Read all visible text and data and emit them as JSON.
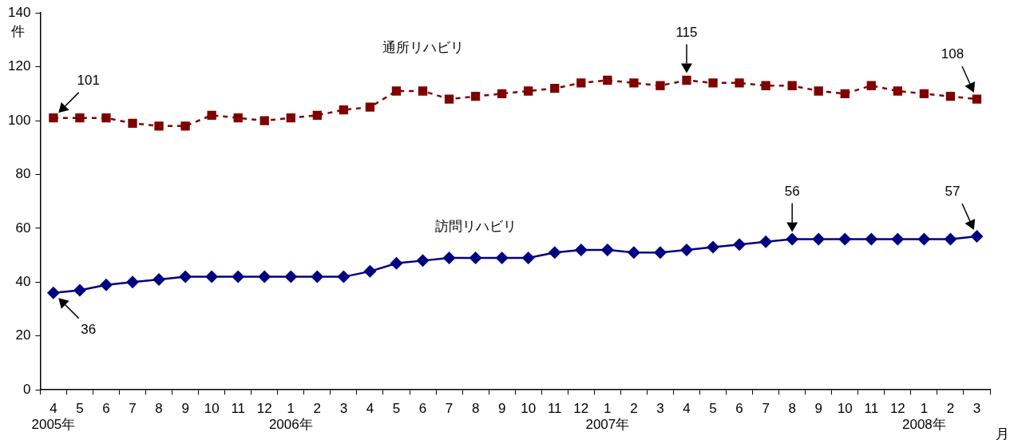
{
  "chart_data": {
    "type": "line",
    "ylabel": "件",
    "xlabel": "月",
    "categories": [
      "4\n2005年",
      "5",
      "6",
      "7",
      "8",
      "9",
      "10",
      "11",
      "12",
      "1\n2006年",
      "2",
      "3",
      "4",
      "5",
      "6",
      "7",
      "8",
      "9",
      "10",
      "11",
      "12",
      "1\n2007年",
      "2",
      "3",
      "4",
      "5",
      "6",
      "7",
      "8",
      "9",
      "10",
      "11",
      "12",
      "1\n2008年",
      "2",
      "3"
    ],
    "ylim": [
      0,
      140
    ],
    "yticks": [
      0,
      20,
      40,
      60,
      80,
      100,
      120,
      140
    ],
    "grid": false,
    "legend": false,
    "series": [
      {
        "name": "通所リハビリ",
        "color": "#800000",
        "marker": "square",
        "line_style": "dashed",
        "values": [
          101,
          101,
          101,
          99,
          98,
          98,
          102,
          101,
          100,
          101,
          102,
          104,
          105,
          111,
          111,
          108,
          109,
          110,
          111,
          112,
          114,
          115,
          114,
          113,
          115,
          114,
          114,
          113,
          113,
          111,
          110,
          113,
          111,
          110,
          109,
          108
        ],
        "value_labels": [
          "101",
          null,
          null,
          null,
          null,
          null,
          null,
          null,
          null,
          null,
          null,
          null,
          null,
          null,
          null,
          null,
          null,
          null,
          null,
          null,
          null,
          null,
          null,
          null,
          "115",
          null,
          null,
          null,
          null,
          null,
          null,
          null,
          null,
          null,
          null,
          "108"
        ]
      },
      {
        "name": "訪問リハビリ",
        "color": "#000080",
        "marker": "diamond",
        "line_style": "solid",
        "values": [
          36,
          37,
          39,
          40,
          41,
          42,
          42,
          42,
          42,
          42,
          42,
          42,
          44,
          47,
          48,
          49,
          49,
          49,
          49,
          51,
          52,
          52,
          51,
          51,
          52,
          53,
          54,
          55,
          56,
          56,
          56,
          56,
          56,
          56,
          56,
          57
        ],
        "value_labels": [
          "36",
          null,
          null,
          null,
          null,
          null,
          null,
          null,
          null,
          null,
          null,
          null,
          null,
          null,
          null,
          null,
          null,
          null,
          null,
          null,
          null,
          null,
          null,
          null,
          null,
          null,
          null,
          null,
          "56",
          null,
          null,
          null,
          null,
          null,
          null,
          "57"
        ]
      }
    ]
  }
}
